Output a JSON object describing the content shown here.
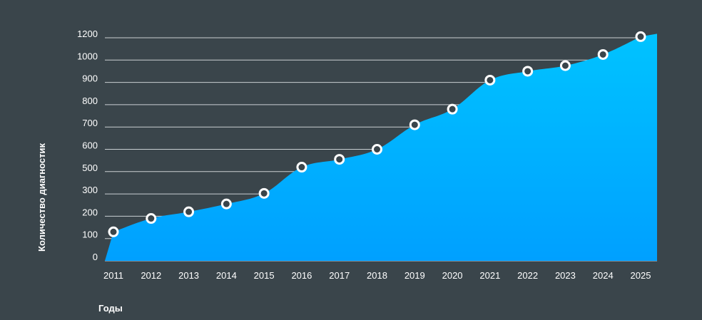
{
  "chart_data": {
    "type": "area",
    "xlabel": "Годы",
    "ylabel": "Количество диагностик",
    "x": [
      "2011",
      "2012",
      "2013",
      "2014",
      "2015",
      "2016",
      "2017",
      "2018",
      "2019",
      "2020",
      "2021",
      "2022",
      "2023",
      "2024",
      "2025"
    ],
    "values": [
      130,
      190,
      220,
      255,
      305,
      520,
      555,
      600,
      710,
      780,
      910,
      950,
      975,
      1050,
      1210
    ],
    "y_ticks": [
      {
        "label": "0",
        "value": 0
      },
      {
        "label": "100",
        "value": 100
      },
      {
        "label": "200",
        "value": 200
      },
      {
        "label": "300",
        "value": 300
      },
      {
        "label": "500",
        "value": 500
      },
      {
        "label": "600",
        "value": 600
      },
      {
        "label": "700",
        "value": 700
      },
      {
        "label": "800",
        "value": 800
      },
      {
        "label": "900",
        "value": 900
      },
      {
        "label": "1000",
        "value": 1000
      },
      {
        "label": "1200",
        "value": 1200
      }
    ],
    "grid": true,
    "legend": "none",
    "colors": {
      "background": "#3a454b",
      "area_top": "#00c3ff",
      "area_bottom": "#00a0ff",
      "marker_fill": "#3a454b",
      "marker_stroke": "#ffffff",
      "grid": "#c9cfd2",
      "text": "#ffffff"
    }
  }
}
